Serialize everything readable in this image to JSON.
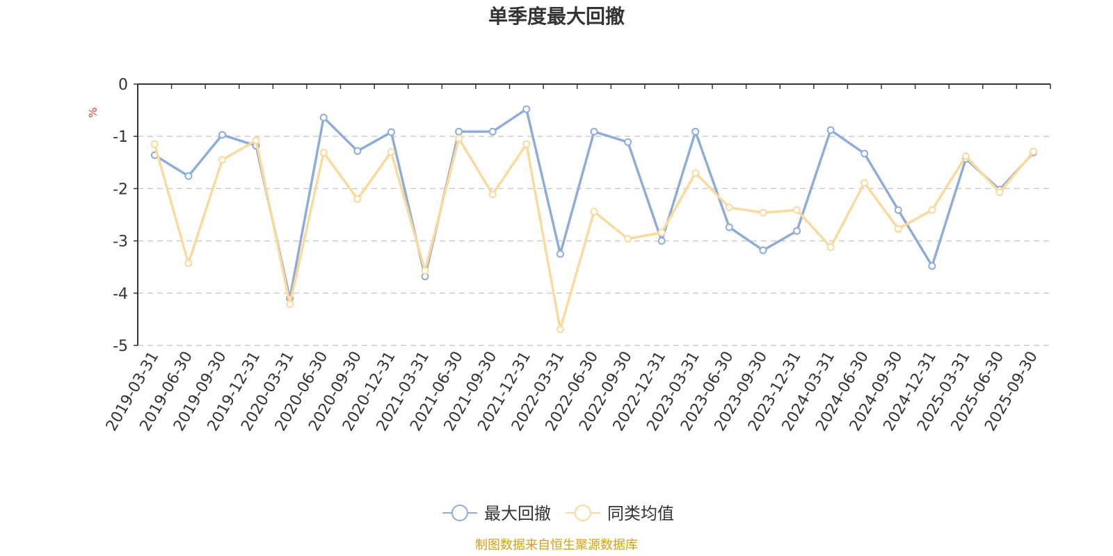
{
  "chart_data": {
    "type": "line",
    "title": "单季度最大回撤",
    "ylabel": "%",
    "xlabel": "",
    "ylim": [
      -5,
      0
    ],
    "yticks": [
      0,
      -1,
      -2,
      -3,
      -4,
      -5
    ],
    "grid": true,
    "legend_position": "bottom",
    "categories": [
      "2019-03-31",
      "2019-06-30",
      "2019-09-30",
      "2019-12-31",
      "2020-03-31",
      "2020-06-30",
      "2020-09-30",
      "2020-12-31",
      "2021-03-31",
      "2021-06-30",
      "2021-09-30",
      "2021-12-31",
      "2022-03-31",
      "2022-06-30",
      "2022-09-30",
      "2022-12-31",
      "2023-03-31",
      "2023-06-30",
      "2023-09-30",
      "2023-12-31",
      "2024-03-31",
      "2024-06-30",
      "2024-09-30",
      "2024-12-31",
      "2025-03-31",
      "2025-06-30",
      "2025-09-30"
    ],
    "series": [
      {
        "name": "最大回撤",
        "color": "#8eacd8",
        "values": [
          -1.36,
          -1.76,
          -0.97,
          -1.18,
          -4.1,
          -0.64,
          -1.28,
          -0.92,
          -3.68,
          -0.91,
          -0.91,
          -0.48,
          -3.25,
          -0.91,
          -1.11,
          -3.0,
          -0.91,
          -2.74,
          -3.18,
          -2.81,
          -0.88,
          -1.33,
          -2.41,
          -3.48,
          -1.43,
          -2.02,
          -1.31
        ]
      },
      {
        "name": "同类均值",
        "color": "#fbd99b",
        "values": [
          -1.15,
          -3.43,
          -1.45,
          -1.08,
          -4.21,
          -1.31,
          -2.2,
          -1.3,
          -3.57,
          -1.04,
          -2.11,
          -1.15,
          -4.69,
          -2.44,
          -2.96,
          -2.84,
          -1.7,
          -2.36,
          -2.46,
          -2.41,
          -3.12,
          -1.89,
          -2.77,
          -2.41,
          -1.38,
          -2.07,
          -1.29
        ]
      }
    ]
  },
  "colors": {
    "axis": "#333333",
    "grid": "#cccccc",
    "unit": "#e54035",
    "source": "#d4a017"
  },
  "source_note": "制图数据来自恒生聚源数据库"
}
